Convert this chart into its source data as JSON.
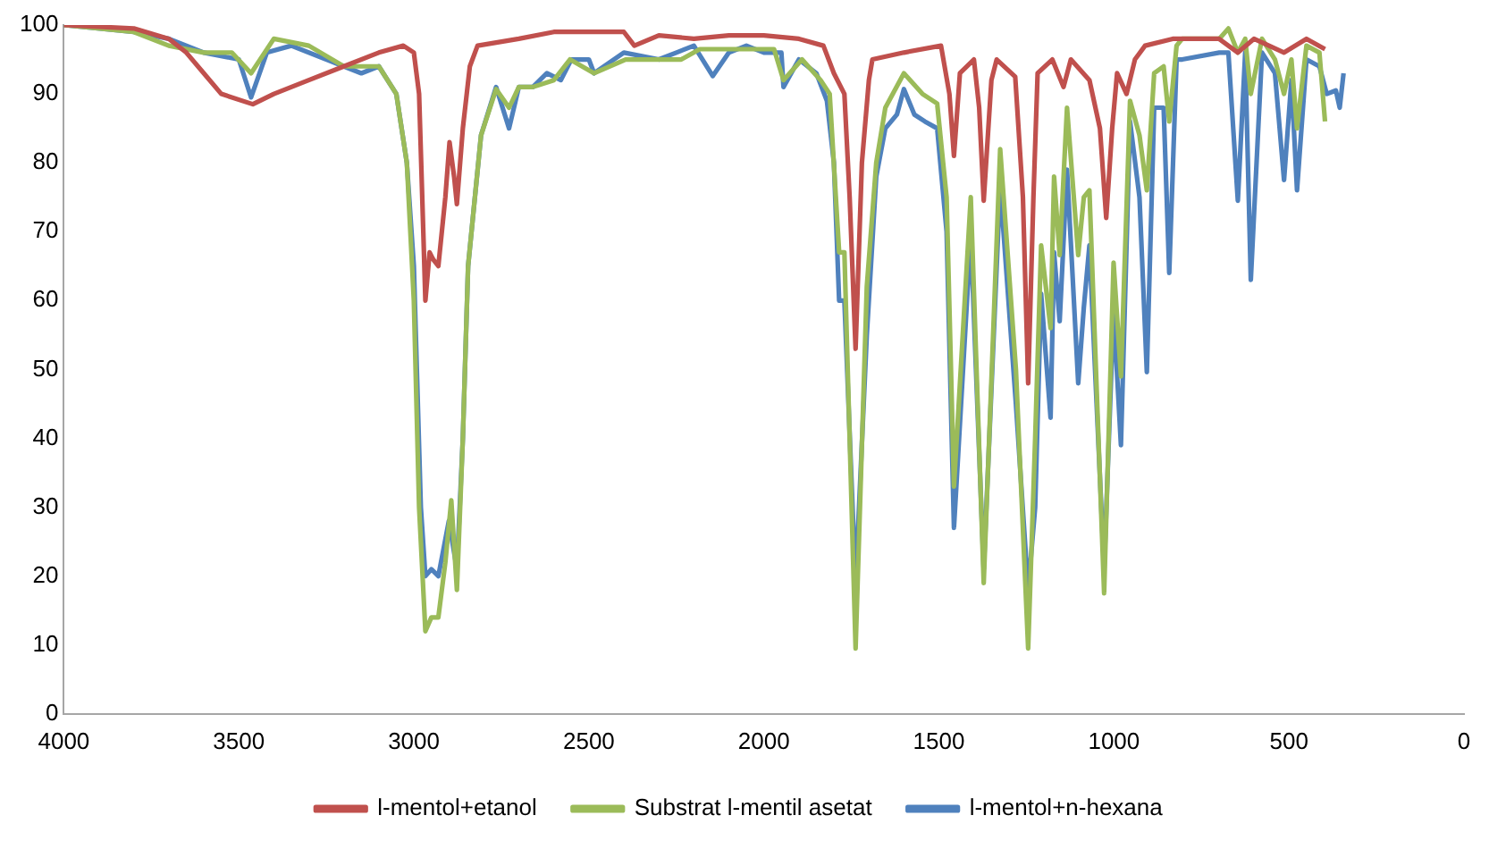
{
  "chart_data": {
    "type": "line",
    "xlim": [
      4000,
      0
    ],
    "xticks": [
      4000,
      3500,
      3000,
      2500,
      2000,
      1500,
      1000,
      500,
      0
    ],
    "ylim": [
      0,
      100
    ],
    "yticks": [
      0,
      10,
      20,
      30,
      40,
      50,
      60,
      70,
      80,
      90,
      100
    ],
    "grid": false,
    "legend": "bottom",
    "marker": "none",
    "line_style": "solid",
    "series": [
      {
        "name": "l-mentol+etanol",
        "color": "#c0504d",
        "x": [
          4000,
          3800,
          3700,
          3650,
          3600,
          3550,
          3460,
          3400,
          3300,
          3200,
          3100,
          3030,
          3000,
          2985,
          2967,
          2955,
          2945,
          2930,
          2910,
          2898,
          2885,
          2877,
          2860,
          2840,
          2818,
          2700,
          2600,
          2500,
          2400,
          2370,
          2300,
          2200,
          2100,
          2000,
          1900,
          1830,
          1800,
          1770,
          1755,
          1738,
          1720,
          1700,
          1690,
          1600,
          1494,
          1470,
          1457,
          1440,
          1400,
          1385,
          1372,
          1350,
          1335,
          1282,
          1260,
          1245,
          1230,
          1218,
          1176,
          1144,
          1123,
          1070,
          1040,
          1022,
          1005,
          991,
          964,
          940,
          911,
          832,
          700,
          646,
          600,
          514,
          450,
          397
        ],
        "values": [
          100,
          99.5,
          98,
          96,
          93,
          90,
          88.5,
          90,
          92,
          94,
          96,
          97,
          96,
          90,
          60,
          67,
          66,
          65,
          75,
          83,
          78,
          74,
          85,
          94,
          97,
          98,
          99,
          99,
          99,
          97,
          98.5,
          98,
          98.5,
          98.5,
          98,
          97,
          93,
          90,
          75,
          53,
          80,
          92,
          95,
          96,
          97,
          90,
          81,
          93,
          95,
          88,
          74.5,
          92,
          95,
          92.5,
          75,
          48,
          75,
          93,
          95,
          91,
          95,
          92,
          85,
          72,
          85,
          93,
          90,
          95,
          97,
          98,
          98,
          96,
          98,
          96,
          98,
          96.5
        ]
      },
      {
        "name": "Substrat l-mentil asetat",
        "color": "#9bbb59",
        "x": [
          4000,
          3800,
          3700,
          3600,
          3520,
          3465,
          3400,
          3300,
          3200,
          3100,
          3050,
          3020,
          3000,
          2985,
          2967,
          2950,
          2930,
          2910,
          2893,
          2877,
          2860,
          2845,
          2808,
          2765,
          2728,
          2700,
          2660,
          2600,
          2554,
          2485,
          2395,
          2236,
          2183,
          2077,
          1971,
          1944,
          1891,
          1838,
          1812,
          1785,
          1770,
          1738,
          1706,
          1679,
          1653,
          1600,
          1547,
          1505,
          1478,
          1457,
          1409,
          1372,
          1325,
          1280,
          1245,
          1225,
          1208,
          1181,
          1171,
          1155,
          1134,
          1102,
          1086,
          1070,
          1028,
          1001,
          980,
          954,
          927,
          906,
          885,
          858,
          842,
          821,
          805,
          699,
          673,
          646,
          625,
          609,
          577,
          540,
          514,
          493,
          477,
          450,
          413,
          397
        ],
        "values": [
          100,
          99,
          97,
          96,
          96,
          93,
          98,
          97,
          94,
          94,
          90,
          80,
          60,
          30,
          12,
          14,
          14,
          22,
          31,
          18,
          40,
          65,
          84,
          90.7,
          88,
          91,
          91,
          92,
          95,
          93,
          95,
          95,
          96.5,
          96.5,
          96.5,
          92,
          95,
          92,
          90,
          67,
          67,
          9.5,
          62,
          80,
          88,
          93,
          90,
          88.6,
          75,
          33,
          75,
          19,
          82,
          50,
          9.5,
          40,
          68,
          56,
          78,
          66.6,
          88,
          66.6,
          75,
          76,
          17.5,
          65.5,
          49,
          89,
          84,
          76,
          93,
          94,
          86,
          97,
          98,
          98,
          99.5,
          96,
          98,
          90,
          98,
          95,
          90,
          95,
          85,
          97,
          96,
          86
        ]
      },
      {
        "name": "l-mentol+n-hexana",
        "color": "#4f81bd",
        "x": [
          4000,
          3800,
          3700,
          3600,
          3500,
          3465,
          3420,
          3350,
          3250,
          3150,
          3100,
          3050,
          3020,
          3000,
          2980,
          2967,
          2950,
          2930,
          2900,
          2877,
          2860,
          2845,
          2808,
          2765,
          2728,
          2700,
          2660,
          2620,
          2580,
          2550,
          2500,
          2485,
          2400,
          2300,
          2250,
          2200,
          2146,
          2100,
          2050,
          2000,
          1950,
          1944,
          1900,
          1850,
          1820,
          1800,
          1785,
          1770,
          1738,
          1706,
          1679,
          1653,
          1620,
          1600,
          1570,
          1540,
          1505,
          1478,
          1457,
          1409,
          1372,
          1325,
          1280,
          1245,
          1225,
          1208,
          1181,
          1171,
          1155,
          1134,
          1102,
          1086,
          1070,
          1028,
          1001,
          980,
          954,
          927,
          906,
          885,
          858,
          842,
          821,
          805,
          699,
          673,
          646,
          625,
          609,
          577,
          540,
          514,
          493,
          477,
          450,
          413,
          392,
          366,
          355,
          344
        ],
        "values": [
          100,
          99,
          98,
          96,
          95,
          89.5,
          96,
          97,
          95,
          93,
          94,
          90,
          80,
          65,
          30,
          20,
          21,
          20,
          28,
          21,
          40,
          65,
          84,
          91,
          85,
          91,
          91,
          93,
          92,
          95,
          95,
          93,
          96,
          95,
          96,
          97,
          92.6,
          96,
          97,
          96,
          96,
          91,
          95,
          93,
          89,
          80,
          60,
          60,
          19,
          55,
          78,
          85,
          87,
          90.7,
          87,
          86,
          85,
          70,
          27,
          69.5,
          21,
          76.7,
          45,
          18,
          30,
          61,
          43,
          67,
          57,
          79,
          48,
          59,
          68,
          21,
          58.6,
          39,
          86,
          75,
          49.6,
          88,
          88,
          64,
          95,
          95,
          96,
          96,
          74.5,
          96,
          63,
          96,
          93,
          77.5,
          92,
          76,
          95,
          94,
          90,
          90.5,
          88,
          93
        ]
      }
    ]
  }
}
